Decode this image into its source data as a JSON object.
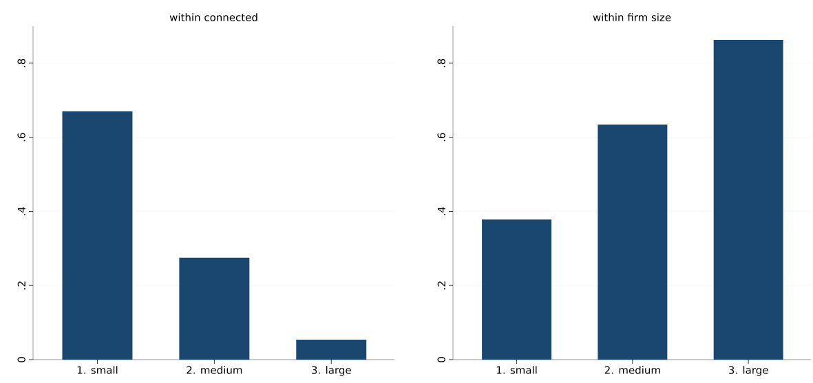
{
  "chart_data": [
    {
      "type": "bar",
      "title": "within connected",
      "categories": [
        "1. small",
        "2. medium",
        "3. large"
      ],
      "values": [
        0.67,
        0.275,
        0.054
      ],
      "color": "#1a476f",
      "ylim": [
        0,
        0.9
      ],
      "yticks": [
        0,
        {
          "value": 0.2,
          "label": ".2"
        },
        {
          "value": 0.4,
          "label": ".4"
        },
        {
          "value": 0.6,
          "label": ".6"
        },
        {
          "value": 0.8,
          "label": ".8"
        }
      ],
      "grid": "y"
    },
    {
      "type": "bar",
      "title": "within firm size",
      "categories": [
        "1. small",
        "2. medium",
        "3. large"
      ],
      "values": [
        0.378,
        0.634,
        0.863
      ],
      "color": "#1a476f",
      "ylim": [
        0,
        0.9
      ],
      "yticks": [
        0,
        {
          "value": 0.2,
          "label": ".2"
        },
        {
          "value": 0.4,
          "label": ".4"
        },
        {
          "value": 0.6,
          "label": ".6"
        },
        {
          "value": 0.8,
          "label": ".8"
        }
      ],
      "grid": "y"
    }
  ]
}
